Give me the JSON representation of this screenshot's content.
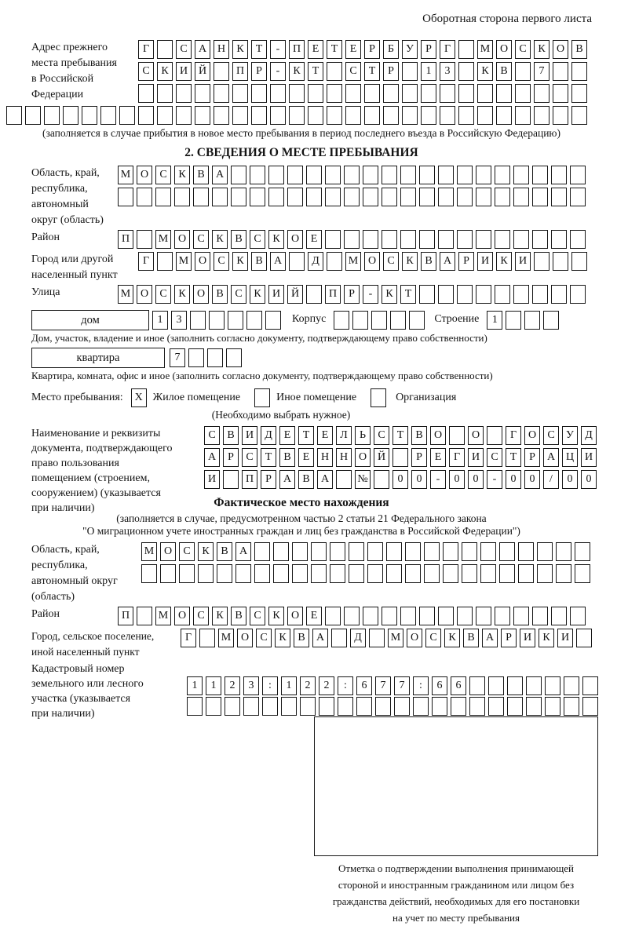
{
  "page": {
    "header_note": "Оборотная сторона первого листа"
  },
  "prev_address": {
    "label_lines": [
      "Адрес прежнего",
      "места пребывания",
      "в Российской",
      "Федерации"
    ],
    "rows": [
      {
        "text": "Г САНКТ-ПЕТЕРБУРГ МОСКОВ",
        "count": 24
      },
      {
        "text": "СКИЙ ПР-КТ СТР 13 КВ 7",
        "count": 24
      },
      {
        "text": "",
        "count": 24
      }
    ],
    "overflow_row": {
      "text": "",
      "count": 31
    },
    "note": "(заполняется в случае прибытия в новое место пребывания в период последнего въезда в Российскую Федерацию)"
  },
  "section2": {
    "title": "2. СВЕДЕНИЯ О МЕСТЕ ПРЕБЫВАНИЯ",
    "region": {
      "label_lines": [
        "Область, край,",
        "республика,",
        "автономный",
        "округ (область)"
      ],
      "rows": [
        {
          "text": "МОСКВА",
          "count": 25
        },
        {
          "text": "",
          "count": 25
        }
      ]
    },
    "district": {
      "label": "Район",
      "row": {
        "text": "П МОСКВСКОЕ",
        "count": 25
      }
    },
    "city": {
      "label_lines": [
        "Город или другой",
        "населенный пункт"
      ],
      "row": {
        "text": "Г МОСКВА Д МОСКВАРИКИ",
        "count": 24
      }
    },
    "street": {
      "label": "Улица",
      "row": {
        "text": "МОСКОВСКИЙ ПР-КТ",
        "count": 25
      }
    },
    "house_line": {
      "house_label": "дом",
      "house_row": {
        "text": "13",
        "count": 7
      },
      "korpus_label": "Корпус",
      "korpus_row": {
        "text": "",
        "count": 5
      },
      "stroenie_label": "Строение",
      "stroenie_row": {
        "text": "1",
        "count": 4
      },
      "caption": "Дом, участок, владение и иное (заполнить согласно документу, подтверждающему право собственности)"
    },
    "apartment_line": {
      "apartment_label": "квартира",
      "apartment_row": {
        "text": "7",
        "count": 4
      },
      "caption": "Квартира, комната, офис и иное (заполнить согласно документу, подтверждающему право собственности)"
    },
    "stay_type": {
      "label": "Место пребывания:",
      "options": [
        {
          "label": "Жилое помещение",
          "mark": "X"
        },
        {
          "label": "Иное помещение",
          "mark": ""
        },
        {
          "label": "Организация",
          "mark": ""
        }
      ],
      "note": "(Необходимо выбрать нужное)"
    },
    "right_document": {
      "label_lines": [
        "Наименование и реквизиты",
        "документа, подтверждающего",
        "право пользования",
        "помещением (строением,",
        "сооружением) (указывается",
        "при наличии)"
      ],
      "rows": [
        {
          "text": "СВИДЕТЕЛЬСТВО О ГОСУД",
          "count": 21
        },
        {
          "text": "АРСТВЕННОЙ РЕГИСТРАЦИ",
          "count": 21
        },
        {
          "text": "И ПРАВА № 00-00-00/000",
          "count": 21
        }
      ]
    }
  },
  "actual_location": {
    "title": "Фактическое место нахождения",
    "note_lines": [
      "(заполняется в случае, предусмотренном частью 2 статьи 21 Федерального закона",
      "\"О миграционном учете иностранных граждан и лиц без гражданства в Российской Федерации\")"
    ],
    "region": {
      "label_lines": [
        "Область, край,",
        "республика,",
        "автономный округ",
        "(область)"
      ],
      "rows": [
        {
          "text": "МОСКВА",
          "count": 24
        },
        {
          "text": "",
          "count": 24
        }
      ]
    },
    "district": {
      "label": "Район",
      "row": {
        "text": "П МОСКВСКОЕ",
        "count": 25
      }
    },
    "city": {
      "label_lines": [
        "Город, сельское поселение,",
        "иной населенный пункт"
      ],
      "row": {
        "text": "Г МОСКВА Д МОСКВАРИКИ",
        "count": 22
      }
    },
    "cadastre": {
      "label_lines": [
        "Кадастровый номер",
        "земельного или лесного",
        "участка (указывается",
        "при наличии)"
      ],
      "rows": [
        {
          "text": "1123:122:677:66",
          "count": 22
        },
        {
          "text": "",
          "count": 22
        }
      ]
    },
    "stamp_caption_lines": [
      "Отметка о подтверждении выполнения принимающей",
      "стороной и иностранным гражданином или лицом без",
      "гражданства действий, необходимых для его постановки",
      "на учет по месту пребывания"
    ]
  }
}
